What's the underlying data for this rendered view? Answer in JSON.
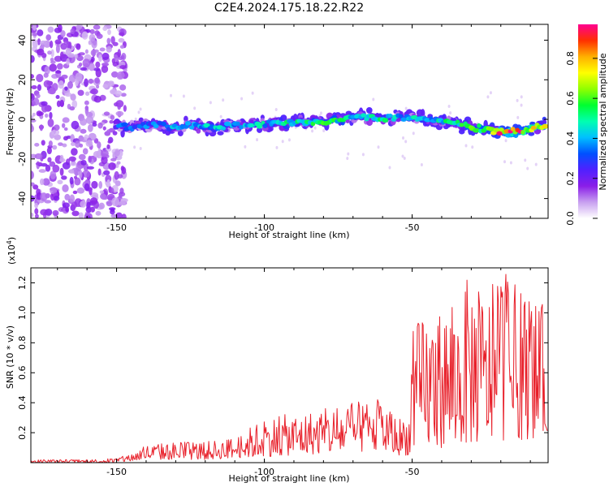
{
  "title": "C2E4.2024.175.18.22.R22",
  "chart_data": [
    {
      "type": "heatmap",
      "name": "spectrogram",
      "xlabel": "Height of straight line (km)",
      "ylabel": "Frequency (Hz)",
      "xlim": [
        -179,
        -4
      ],
      "ylim": [
        -50,
        48
      ],
      "xticks": [
        -150,
        -100,
        -50
      ],
      "yticks": [
        -40,
        -20,
        0,
        20,
        40
      ],
      "colorbar": {
        "label": "Normalized spectral amplitude",
        "range": [
          0,
          0.97
        ],
        "ticks": [
          0.0,
          0.2,
          0.4,
          0.6,
          0.8
        ],
        "colors": [
          "#ffffff",
          "#c8a0f0",
          "#8a1ee8",
          "#5020ff",
          "#0050ff",
          "#00c0ff",
          "#00ffb0",
          "#00ff30",
          "#90ff00",
          "#ffff00",
          "#ffb000",
          "#ff3000",
          "#ff0090"
        ]
      },
      "ridge": {
        "x": [
          -150,
          -145,
          -140,
          -135,
          -130,
          -125,
          -120,
          -115,
          -110,
          -105,
          -100,
          -95,
          -90,
          -85,
          -80,
          -75,
          -70,
          -65,
          -60,
          -55,
          -50,
          -45,
          -40,
          -35,
          -30,
          -25,
          -20,
          -15,
          -10,
          -5
        ],
        "freq": [
          -3,
          -4,
          -3,
          -3,
          -4,
          -3,
          -4,
          -4,
          -3,
          -3,
          -2,
          -2,
          -2,
          -1,
          -1,
          0,
          1,
          1,
          1,
          1,
          1,
          0,
          -1,
          -2,
          -4,
          -5,
          -6,
          -6,
          -5,
          -3
        ],
        "amplitude": [
          0.3,
          0.4,
          0.35,
          0.35,
          0.4,
          0.4,
          0.45,
          0.42,
          0.4,
          0.42,
          0.45,
          0.5,
          0.48,
          0.5,
          0.55,
          0.5,
          0.5,
          0.45,
          0.5,
          0.45,
          0.45,
          0.45,
          0.5,
          0.5,
          0.6,
          0.65,
          0.85,
          0.9,
          0.8,
          0.9
        ]
      },
      "noise_region_x": [
        -179,
        -147
      ]
    },
    {
      "type": "line",
      "name": "snr",
      "xlabel": "Height of straight line (km)",
      "ylabel": "SNR (10 * v/v)",
      "y_multiplier": "(x10",
      "y_multiplier_exp": "4",
      "y_multiplier_close": ")",
      "xlim": [
        -179,
        -4
      ],
      "ylim": [
        0,
        1.3
      ],
      "xticks": [
        -150,
        -100,
        -50
      ],
      "yticks": [
        0.2,
        0.4,
        0.6,
        0.8,
        1.0,
        1.2
      ],
      "color": "#e8202a",
      "envelope": {
        "x": [
          -179,
          -160,
          -150,
          -145,
          -140,
          -130,
          -120,
          -110,
          -100,
          -90,
          -80,
          -70,
          -60,
          -55,
          -51,
          -50,
          -45,
          -40,
          -35,
          -30,
          -25,
          -20,
          -15,
          -10,
          -5,
          -4
        ],
        "upper": [
          0.02,
          0.02,
          0.03,
          0.06,
          0.12,
          0.14,
          0.14,
          0.17,
          0.3,
          0.33,
          0.36,
          0.4,
          0.43,
          0.3,
          0.34,
          0.9,
          1.02,
          1.05,
          1.1,
          1.28,
          1.1,
          1.3,
          1.2,
          1.1,
          1.05,
          1.05
        ],
        "lower": [
          0.0,
          0.0,
          0.0,
          0.01,
          0.02,
          0.02,
          0.02,
          0.03,
          0.04,
          0.05,
          0.06,
          0.07,
          0.07,
          0.05,
          0.05,
          0.08,
          0.1,
          0.1,
          0.12,
          0.12,
          0.14,
          0.15,
          0.15,
          0.16,
          0.18,
          0.2
        ]
      }
    }
  ]
}
